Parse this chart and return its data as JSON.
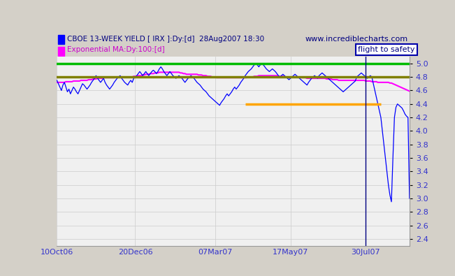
{
  "title_line1": "CBOE 13-WEEK YIELD [ IRX ]:Dy:[d]  28Aug2007 18:30",
  "title_line2": "Exponential MA:Dy:100:[d]",
  "watermark": "www.incrediblecharts.com",
  "annotation": "flight to safety",
  "line1_color": "#0000FF",
  "line2_color": "#FF00FF",
  "hline_green": 5.0,
  "hline_olive": 4.8,
  "hline_orange_y": 4.4,
  "hline_orange_xstart": 0.535,
  "hline_green_color": "#00BB00",
  "hline_olive_color": "#808000",
  "hline_orange_color": "#FFA500",
  "ylim": [
    2.3,
    5.1
  ],
  "yticks": [
    2.4,
    2.6,
    2.8,
    3.0,
    3.2,
    3.4,
    3.6,
    3.8,
    4.0,
    4.2,
    4.4,
    4.6,
    4.8,
    5.0
  ],
  "tick_label_color": "#3333CC",
  "bg_color": "#D4D0C8",
  "header_bg_color": "#D4D0C8",
  "plot_bg_color": "#F0F0F0",
  "x_labels": [
    "10Oct06",
    "20Dec06",
    "07Mar07",
    "17May07",
    "30Jul07"
  ],
  "x_tick_positions": [
    0,
    52,
    105,
    155,
    205
  ],
  "n_points": 235,
  "blue_line_data": [
    4.75,
    4.7,
    4.65,
    4.6,
    4.68,
    4.72,
    4.65,
    4.58,
    4.62,
    4.55,
    4.6,
    4.65,
    4.62,
    4.58,
    4.55,
    4.6,
    4.65,
    4.7,
    4.68,
    4.65,
    4.62,
    4.65,
    4.68,
    4.72,
    4.75,
    4.78,
    4.82,
    4.78,
    4.75,
    4.72,
    4.75,
    4.78,
    4.72,
    4.68,
    4.65,
    4.62,
    4.65,
    4.68,
    4.72,
    4.75,
    4.78,
    4.8,
    4.82,
    4.78,
    4.75,
    4.72,
    4.7,
    4.68,
    4.72,
    4.75,
    4.72,
    4.78,
    4.8,
    4.82,
    4.85,
    4.88,
    4.85,
    4.82,
    4.85,
    4.88,
    4.85,
    4.82,
    4.85,
    4.88,
    4.9,
    4.88,
    4.85,
    4.88,
    4.92,
    4.95,
    4.92,
    4.88,
    4.85,
    4.82,
    4.85,
    4.88,
    4.85,
    4.82,
    4.8,
    4.78,
    4.8,
    4.82,
    4.8,
    4.78,
    4.75,
    4.72,
    4.75,
    4.78,
    4.8,
    4.82,
    4.8,
    4.78,
    4.75,
    4.72,
    4.7,
    4.68,
    4.65,
    4.62,
    4.6,
    4.58,
    4.55,
    4.52,
    4.5,
    4.48,
    4.46,
    4.44,
    4.42,
    4.4,
    4.38,
    4.42,
    4.45,
    4.48,
    4.52,
    4.55,
    4.52,
    4.55,
    4.58,
    4.62,
    4.65,
    4.62,
    4.65,
    4.68,
    4.72,
    4.75,
    4.78,
    4.82,
    4.85,
    4.88,
    4.9,
    4.92,
    4.95,
    4.98,
    5.0,
    4.98,
    4.95,
    4.98,
    5.0,
    4.98,
    4.95,
    4.92,
    4.9,
    4.88,
    4.9,
    4.92,
    4.9,
    4.88,
    4.85,
    4.82,
    4.8,
    4.82,
    4.84,
    4.82,
    4.8,
    4.78,
    4.76,
    4.78,
    4.8,
    4.82,
    4.84,
    4.82,
    4.8,
    4.78,
    4.76,
    4.74,
    4.72,
    4.7,
    4.68,
    4.72,
    4.75,
    4.78,
    4.8,
    4.82,
    4.8,
    4.78,
    4.82,
    4.84,
    4.86,
    4.84,
    4.82,
    4.8,
    4.78,
    4.76,
    4.74,
    4.72,
    4.7,
    4.68,
    4.66,
    4.64,
    4.62,
    4.6,
    4.58,
    4.6,
    4.62,
    4.64,
    4.66,
    4.68,
    4.7,
    4.72,
    4.74,
    4.8,
    4.82,
    4.84,
    4.86,
    4.84,
    4.82,
    4.8,
    4.78,
    4.8,
    4.82,
    4.8,
    4.7,
    4.6,
    4.5,
    4.4,
    4.3,
    4.2,
    4.0,
    3.8,
    3.6,
    3.4,
    3.2,
    3.05,
    2.95,
    3.6,
    4.2,
    4.35,
    4.4,
    4.38,
    4.36,
    4.34,
    4.3,
    4.25,
    4.22,
    4.2,
    3.0
  ],
  "ema_data": [
    4.72,
    4.72,
    4.72,
    4.72,
    4.72,
    4.72,
    4.73,
    4.73,
    4.73,
    4.73,
    4.73,
    4.74,
    4.74,
    4.74,
    4.74,
    4.74,
    4.75,
    4.75,
    4.75,
    4.75,
    4.75,
    4.76,
    4.76,
    4.76,
    4.77,
    4.77,
    4.77,
    4.78,
    4.78,
    4.78,
    4.78,
    4.79,
    4.79,
    4.79,
    4.79,
    4.79,
    4.79,
    4.79,
    4.79,
    4.8,
    4.8,
    4.8,
    4.8,
    4.8,
    4.8,
    4.8,
    4.8,
    4.8,
    4.8,
    4.8,
    4.8,
    4.81,
    4.81,
    4.81,
    4.82,
    4.82,
    4.82,
    4.83,
    4.83,
    4.84,
    4.84,
    4.84,
    4.85,
    4.85,
    4.85,
    4.86,
    4.86,
    4.86,
    4.87,
    4.87,
    4.87,
    4.87,
    4.87,
    4.87,
    4.87,
    4.87,
    4.87,
    4.87,
    4.87,
    4.87,
    4.87,
    4.87,
    4.86,
    4.86,
    4.85,
    4.85,
    4.84,
    4.84,
    4.84,
    4.84,
    4.84,
    4.84,
    4.84,
    4.84,
    4.83,
    4.83,
    4.83,
    4.82,
    4.82,
    4.82,
    4.81,
    4.81,
    4.81,
    4.8,
    4.8,
    4.8,
    4.79,
    4.79,
    4.79,
    4.79,
    4.79,
    4.79,
    4.79,
    4.79,
    4.79,
    4.79,
    4.79,
    4.79,
    4.79,
    4.79,
    4.79,
    4.79,
    4.79,
    4.79,
    4.79,
    4.79,
    4.79,
    4.8,
    4.8,
    4.8,
    4.8,
    4.81,
    4.81,
    4.81,
    4.82,
    4.82,
    4.82,
    4.82,
    4.82,
    4.82,
    4.82,
    4.82,
    4.82,
    4.82,
    4.82,
    4.82,
    4.82,
    4.81,
    4.81,
    4.81,
    4.81,
    4.8,
    4.8,
    4.8,
    4.8,
    4.8,
    4.8,
    4.8,
    4.8,
    4.8,
    4.8,
    4.8,
    4.79,
    4.79,
    4.79,
    4.79,
    4.78,
    4.78,
    4.78,
    4.78,
    4.78,
    4.78,
    4.78,
    4.78,
    4.78,
    4.78,
    4.78,
    4.78,
    4.78,
    4.77,
    4.77,
    4.77,
    4.77,
    4.76,
    4.76,
    4.76,
    4.76,
    4.75,
    4.75,
    4.75,
    4.75,
    4.75,
    4.75,
    4.75,
    4.75,
    4.75,
    4.75,
    4.75,
    4.75,
    4.75,
    4.75,
    4.75,
    4.75,
    4.75,
    4.75,
    4.74,
    4.74,
    4.74,
    4.74,
    4.73,
    4.73,
    4.73,
    4.73,
    4.72,
    4.72,
    4.72,
    4.72,
    4.72,
    4.72,
    4.72,
    4.72,
    4.71,
    4.71,
    4.7,
    4.69,
    4.68,
    4.67,
    4.66,
    4.65,
    4.64,
    4.63,
    4.62,
    4.61,
    4.6,
    4.59
  ]
}
